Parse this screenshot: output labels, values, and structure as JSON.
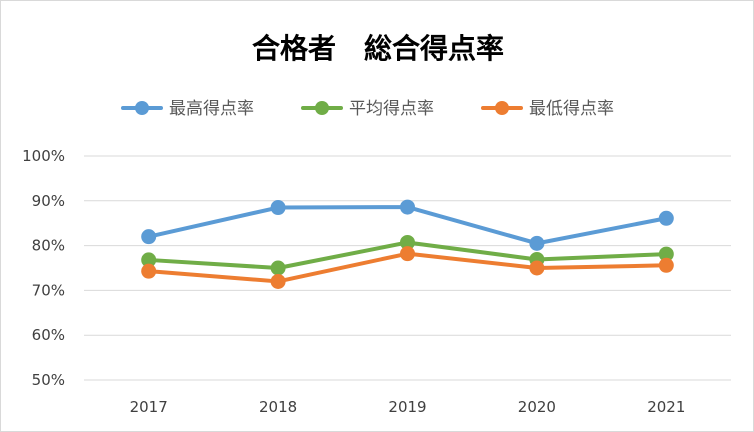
{
  "chart_data": {
    "type": "line",
    "title": "合格者　総合得点率",
    "categories": [
      "2017",
      "2018",
      "2019",
      "2020",
      "2021"
    ],
    "ylim": [
      50,
      100
    ],
    "yticks": [
      "50%",
      "60%",
      "70%",
      "80%",
      "90%",
      "100%"
    ],
    "grid": true,
    "legend_position": "top",
    "series": [
      {
        "name": "最高得点率",
        "color": "#5b9bd5",
        "values": [
          82.0,
          88.5,
          88.6,
          80.5,
          86.1
        ]
      },
      {
        "name": "平均得点率",
        "color": "#70ad47",
        "values": [
          76.8,
          75.0,
          80.7,
          76.9,
          78.1
        ]
      },
      {
        "name": "最低得点率",
        "color": "#ed7d31",
        "values": [
          74.3,
          72.0,
          78.2,
          75.0,
          75.6
        ]
      }
    ]
  }
}
